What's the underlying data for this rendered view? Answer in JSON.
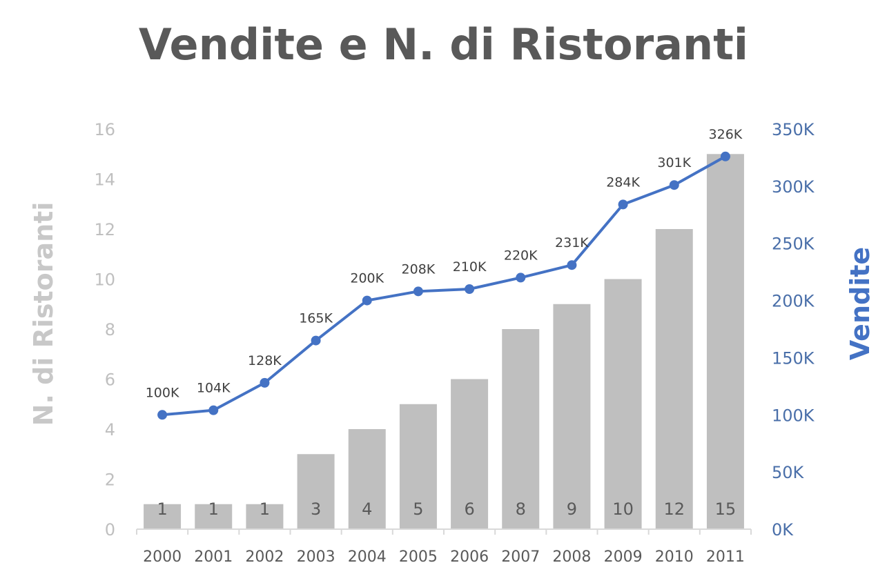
{
  "chart_data": {
    "type": "bar+line",
    "title": "Vendite e N. di Ristoranti",
    "categories": [
      "2000",
      "2001",
      "2002",
      "2003",
      "2004",
      "2005",
      "2006",
      "2007",
      "2008",
      "2009",
      "2010",
      "2011"
    ],
    "series": [
      {
        "name": "N. di Ristoranti",
        "type": "bar",
        "axis": "left",
        "values": [
          1,
          1,
          1,
          3,
          4,
          5,
          6,
          8,
          9,
          10,
          12,
          15
        ],
        "labels": [
          "1",
          "1",
          "1",
          "3",
          "4",
          "5",
          "6",
          "8",
          "9",
          "10",
          "12",
          "15"
        ]
      },
      {
        "name": "Vendite",
        "type": "line",
        "axis": "right",
        "values": [
          100000,
          104000,
          128000,
          165000,
          200000,
          208000,
          210000,
          220000,
          231000,
          284000,
          301000,
          326000
        ],
        "labels": [
          "100K",
          "104K",
          "128K",
          "165K",
          "200K",
          "208K",
          "210K",
          "220K",
          "231K",
          "284K",
          "301K",
          "326K"
        ]
      }
    ],
    "y_left": {
      "label": "N. di Ristoranti",
      "ylim": [
        0,
        16
      ],
      "ticks": [
        "0",
        "2",
        "4",
        "6",
        "8",
        "10",
        "12",
        "14",
        "16"
      ]
    },
    "y_right": {
      "label": "Vendite",
      "ylim": [
        0,
        350000
      ],
      "ticks": [
        "0K",
        "50K",
        "100K",
        "150K",
        "200K",
        "250K",
        "300K",
        "350K"
      ]
    },
    "grid": false,
    "legend": "none",
    "colors": {
      "bar": "#bfbfbf",
      "line": "#4472c4",
      "right_axis_text": "#4a6fa9",
      "left_axis_text": "#bfbfbf",
      "title": "#595959"
    }
  }
}
